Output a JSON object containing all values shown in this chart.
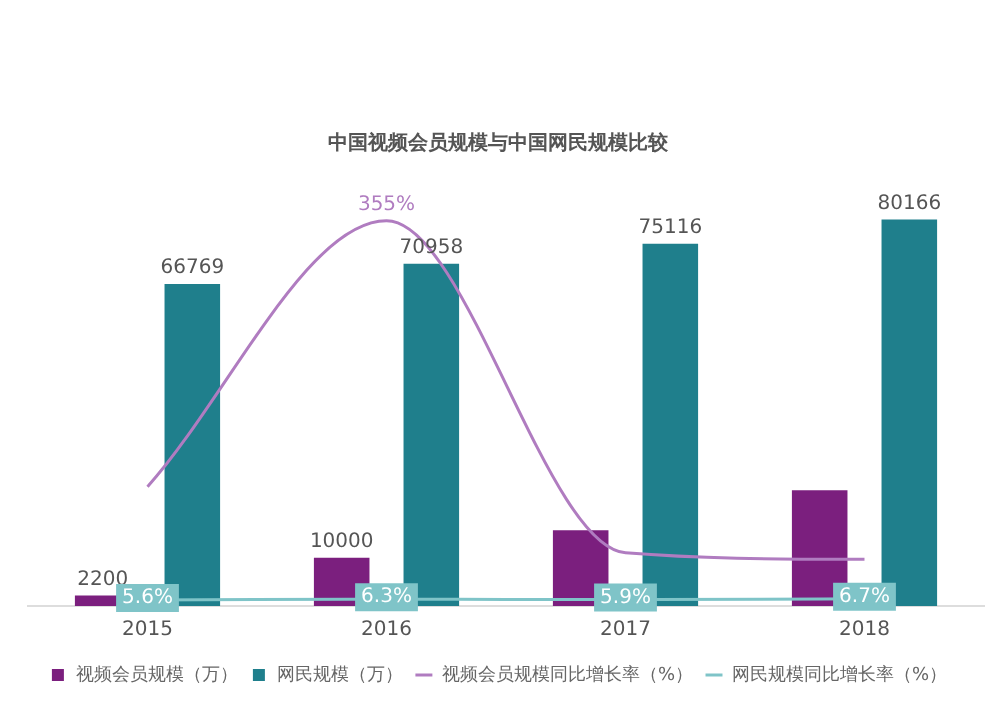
{
  "chart_data": {
    "type": "bar",
    "title": "中国视频会员规模与中国网民规模比较",
    "categories": [
      "2015",
      "2016",
      "2017",
      "2018"
    ],
    "series": [
      {
        "name": "视频会员规模（万）",
        "color": "#7b1f7e",
        "values": [
          2200,
          10000,
          15700,
          24000
        ],
        "value_labels": [
          "2200",
          "10000",
          null,
          null
        ]
      },
      {
        "name": "网民规模（万）",
        "color": "#1f7f8c",
        "values": [
          66769,
          70958,
          75116,
          80166
        ],
        "value_labels": [
          "66769",
          "70958",
          "75116",
          "80166"
        ]
      },
      {
        "name": "视频会员规模同比增长率（%）",
        "type": "line",
        "axis": "y2",
        "color": "#b07cc0",
        "values": [
          110,
          355,
          49,
          43
        ],
        "value_labels": [
          null,
          "355%",
          null,
          null
        ]
      },
      {
        "name": "网民规模同比增长率（%）",
        "type": "line",
        "axis": "y2",
        "color": "#7fc4c8",
        "marker": "square",
        "values": [
          5.6,
          6.3,
          5.9,
          6.7
        ],
        "value_labels": [
          "5.6%",
          "6.3%",
          "5.9%",
          "6.7%"
        ]
      }
    ],
    "tick_labels": "x",
    "grid": false,
    "legend": "bottom",
    "line_style": "solid"
  }
}
